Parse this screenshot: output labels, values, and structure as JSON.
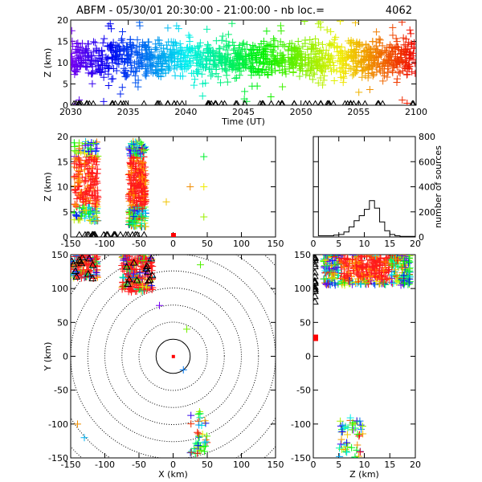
{
  "title": "ABFM - 05/30/01 20:30:00 - 21:00:00 - nb loc.=",
  "count": "4062",
  "chart_data": [
    {
      "id": "time_height",
      "type": "scatter",
      "xlabel": "Time (UT)",
      "ylabel": "Z (km)",
      "xlim": [
        2030,
        2100
      ],
      "ylim": [
        0,
        20
      ],
      "xticks": [
        "2030",
        "2035",
        "2040",
        "2045",
        "2050",
        "2055",
        "2100"
      ],
      "yticks": [
        "0",
        "5",
        "10",
        "15",
        "20"
      ],
      "color_by": "time (violet to red)",
      "marker": "+",
      "band": {
        "center_km": 11,
        "spread_km": 4
      },
      "station_markers": "triangles at Z=0"
    },
    {
      "id": "x_z",
      "type": "scatter",
      "xlabel": "",
      "ylabel": "Z (km)",
      "xlim": [
        -150,
        150
      ],
      "ylim": [
        0,
        20
      ],
      "xticks": [
        "-150",
        "-100",
        "-50",
        "0",
        "50",
        "100",
        "150"
      ],
      "yticks": [
        "0",
        "5",
        "10",
        "15",
        "20"
      ],
      "clusters": [
        {
          "x_range": [
            -145,
            -110
          ],
          "z_range": [
            3,
            19
          ]
        },
        {
          "x_range": [
            -65,
            -40
          ],
          "z_range": [
            2,
            19
          ]
        }
      ],
      "isolated": [
        {
          "x": 45,
          "z": 16
        },
        {
          "x": -10,
          "z": 7
        },
        {
          "x": 25,
          "z": 10
        },
        {
          "x": 45,
          "z": 10
        },
        {
          "x": 45,
          "z": 4
        }
      ]
    },
    {
      "id": "altitude_histogram",
      "type": "line",
      "xlabel": "",
      "ylabel": "number of sources",
      "xlim": [
        0,
        20
      ],
      "ylim": [
        0,
        800
      ],
      "xticks": [
        "0",
        "5",
        "10",
        "15",
        "20"
      ],
      "yticks": [
        "0",
        "200",
        "400",
        "600",
        "800"
      ],
      "x": [
        0,
        1,
        2,
        3,
        4,
        5,
        6,
        7,
        8,
        9,
        10,
        11,
        12,
        13,
        14,
        15,
        16,
        17,
        18,
        19,
        20
      ],
      "values": [
        800,
        10,
        10,
        10,
        15,
        20,
        40,
        80,
        130,
        170,
        220,
        290,
        230,
        120,
        50,
        20,
        10,
        5,
        5,
        5,
        0
      ]
    },
    {
      "id": "plan_view",
      "type": "scatter",
      "xlabel": "X (km)",
      "ylabel": "Y (km)",
      "xlim": [
        -150,
        150
      ],
      "ylim": [
        -150,
        150
      ],
      "xticks": [
        "-150",
        "-100",
        "-50",
        "0",
        "50",
        "100",
        "150"
      ],
      "yticks": [
        "-150",
        "-100",
        "-50",
        "0",
        "50",
        "100",
        "150"
      ],
      "range_rings_km": [
        25,
        50,
        75,
        100,
        125,
        150,
        175,
        200
      ],
      "clusters": [
        {
          "x_range": [
            -150,
            -110
          ],
          "y_range": [
            115,
            152
          ]
        },
        {
          "x_range": [
            -75,
            -30
          ],
          "y_range": [
            95,
            150
          ]
        }
      ]
    },
    {
      "id": "z_y",
      "type": "scatter",
      "xlabel": "Z (km)",
      "ylabel": "",
      "xlim": [
        0,
        20
      ],
      "ylim": [
        -150,
        150
      ],
      "xticks": [
        "0",
        "5",
        "10",
        "15",
        "20"
      ],
      "yticks": [
        "-150",
        "-100",
        "-50",
        "0",
        "50",
        "100",
        "150"
      ],
      "cluster": {
        "z_range": [
          2,
          19
        ],
        "y_range": [
          105,
          150
        ]
      }
    }
  ]
}
